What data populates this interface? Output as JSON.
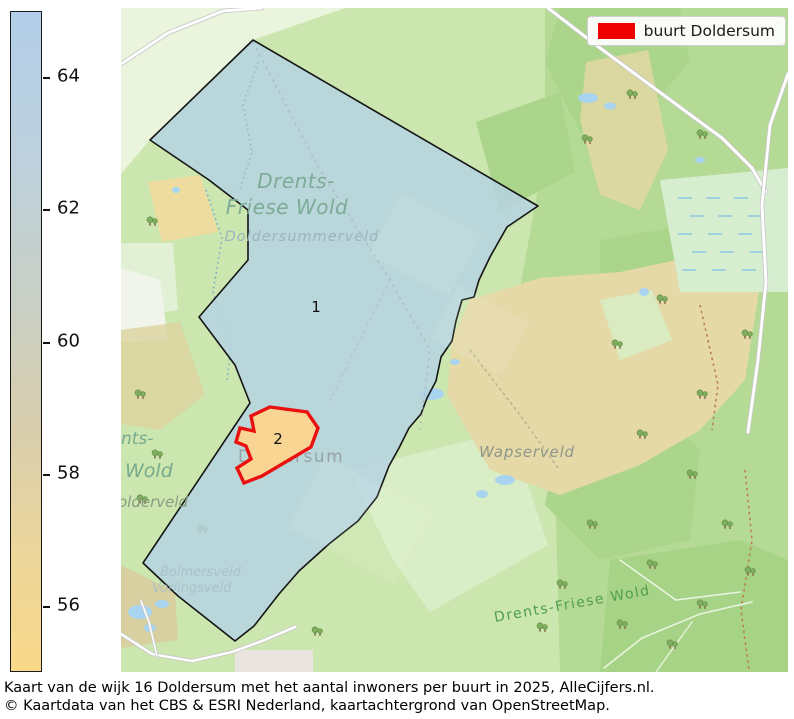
{
  "colorbar": {
    "domain_min": 55,
    "domain_max": 65,
    "tick_values": [
      64,
      62,
      60,
      58,
      56
    ],
    "tick_labels": [
      "64",
      "62",
      "60",
      "58",
      "56"
    ],
    "top_color": "#b3cfe9",
    "bottom_color": "#f9d98a"
  },
  "legend": {
    "label": "buurt Doldersum",
    "swatch_color": "#ee0000"
  },
  "regions": [
    {
      "number": "1",
      "outline_color": "#151515",
      "fill_color": "#b6d2e2"
    },
    {
      "number": "2",
      "outline_color": "#ea1010",
      "fill_color": "#f8d592"
    }
  ],
  "map_labels": {
    "park_line1": "Drents-",
    "park_line2": "Friese Wold",
    "doldersummerveld": "Doldersummerveld",
    "wapserveld": "Wapserveld",
    "park_south": "Drents-Friese Wold",
    "left_line1": "nts-",
    "left_line2": "Wold",
    "left_line3": "olderveld",
    "doldersum": "Doldersum",
    "faint_line1": "Bolmersveld",
    "faint_line2": "Vorlingsveld"
  },
  "captions": {
    "line1": "Kaart van de wijk 16 Doldersum met het aantal inwoners per buurt in 2025,  AlleCijfers.nl.",
    "line2": "© Kaartdata van het CBS & ESRI Nederland, kaartachtergrond van OpenStreetMap."
  }
}
